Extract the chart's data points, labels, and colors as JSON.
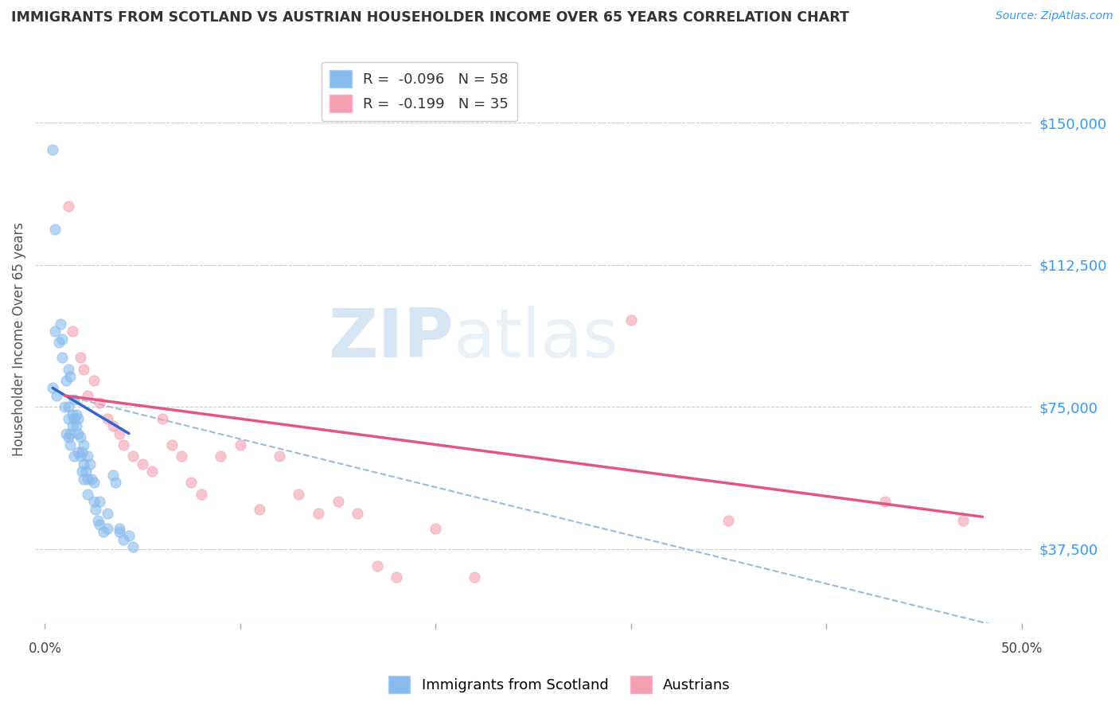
{
  "title": "IMMIGRANTS FROM SCOTLAND VS AUSTRIAN HOUSEHOLDER INCOME OVER 65 YEARS CORRELATION CHART",
  "source": "Source: ZipAtlas.com",
  "ylabel": "Householder Income Over 65 years",
  "ytick_values": [
    37500,
    75000,
    112500,
    150000
  ],
  "ylim": [
    18000,
    168000
  ],
  "xlim": [
    -0.005,
    0.505
  ],
  "legend_blue_r": "R =  -0.096",
  "legend_blue_n": "N = 58",
  "legend_pink_r": "R =  -0.199",
  "legend_pink_n": "N = 35",
  "blue_color": "#88bbee",
  "pink_color": "#f4a0b0",
  "blue_line_color": "#3366cc",
  "pink_line_color": "#e05880",
  "dashed_line_color": "#99bbdd",
  "watermark_zip": "ZIP",
  "watermark_atlas": "atlas",
  "blue_scatter_x": [
    0.004,
    0.005,
    0.006,
    0.007,
    0.009,
    0.01,
    0.011,
    0.011,
    0.012,
    0.012,
    0.012,
    0.013,
    0.013,
    0.014,
    0.014,
    0.015,
    0.015,
    0.016,
    0.016,
    0.017,
    0.017,
    0.018,
    0.018,
    0.019,
    0.019,
    0.02,
    0.02,
    0.021,
    0.022,
    0.022,
    0.023,
    0.024,
    0.025,
    0.026,
    0.027,
    0.028,
    0.03,
    0.032,
    0.035,
    0.036,
    0.038,
    0.04,
    0.004,
    0.005,
    0.008,
    0.009,
    0.012,
    0.013,
    0.015,
    0.017,
    0.02,
    0.022,
    0.025,
    0.028,
    0.032,
    0.038,
    0.043,
    0.045
  ],
  "blue_scatter_y": [
    143000,
    122000,
    78000,
    92000,
    88000,
    75000,
    82000,
    68000,
    75000,
    72000,
    67000,
    68000,
    65000,
    73000,
    70000,
    72000,
    62000,
    73000,
    70000,
    68000,
    63000,
    67000,
    62000,
    63000,
    58000,
    60000,
    56000,
    58000,
    56000,
    52000,
    60000,
    56000,
    50000,
    48000,
    45000,
    44000,
    42000,
    43000,
    57000,
    55000,
    42000,
    40000,
    80000,
    95000,
    97000,
    93000,
    85000,
    83000,
    77000,
    72000,
    65000,
    62000,
    55000,
    50000,
    47000,
    43000,
    41000,
    38000
  ],
  "pink_scatter_x": [
    0.012,
    0.02,
    0.025,
    0.014,
    0.018,
    0.022,
    0.028,
    0.032,
    0.035,
    0.038,
    0.04,
    0.045,
    0.05,
    0.055,
    0.06,
    0.065,
    0.07,
    0.075,
    0.08,
    0.09,
    0.1,
    0.11,
    0.12,
    0.13,
    0.14,
    0.15,
    0.16,
    0.17,
    0.18,
    0.2,
    0.22,
    0.3,
    0.35,
    0.43,
    0.47
  ],
  "pink_scatter_y": [
    128000,
    85000,
    82000,
    95000,
    88000,
    78000,
    76000,
    72000,
    70000,
    68000,
    65000,
    62000,
    60000,
    58000,
    72000,
    65000,
    62000,
    55000,
    52000,
    62000,
    65000,
    48000,
    62000,
    52000,
    47000,
    50000,
    47000,
    33000,
    30000,
    43000,
    30000,
    98000,
    45000,
    50000,
    45000
  ],
  "blue_line_x": [
    0.004,
    0.043
  ],
  "blue_line_y": [
    80000,
    68000
  ],
  "pink_line_x": [
    0.01,
    0.48
  ],
  "pink_line_y": [
    78000,
    46000
  ],
  "dash_line_x": [
    0.01,
    0.505
  ],
  "dash_line_y": [
    78000,
    15000
  ]
}
